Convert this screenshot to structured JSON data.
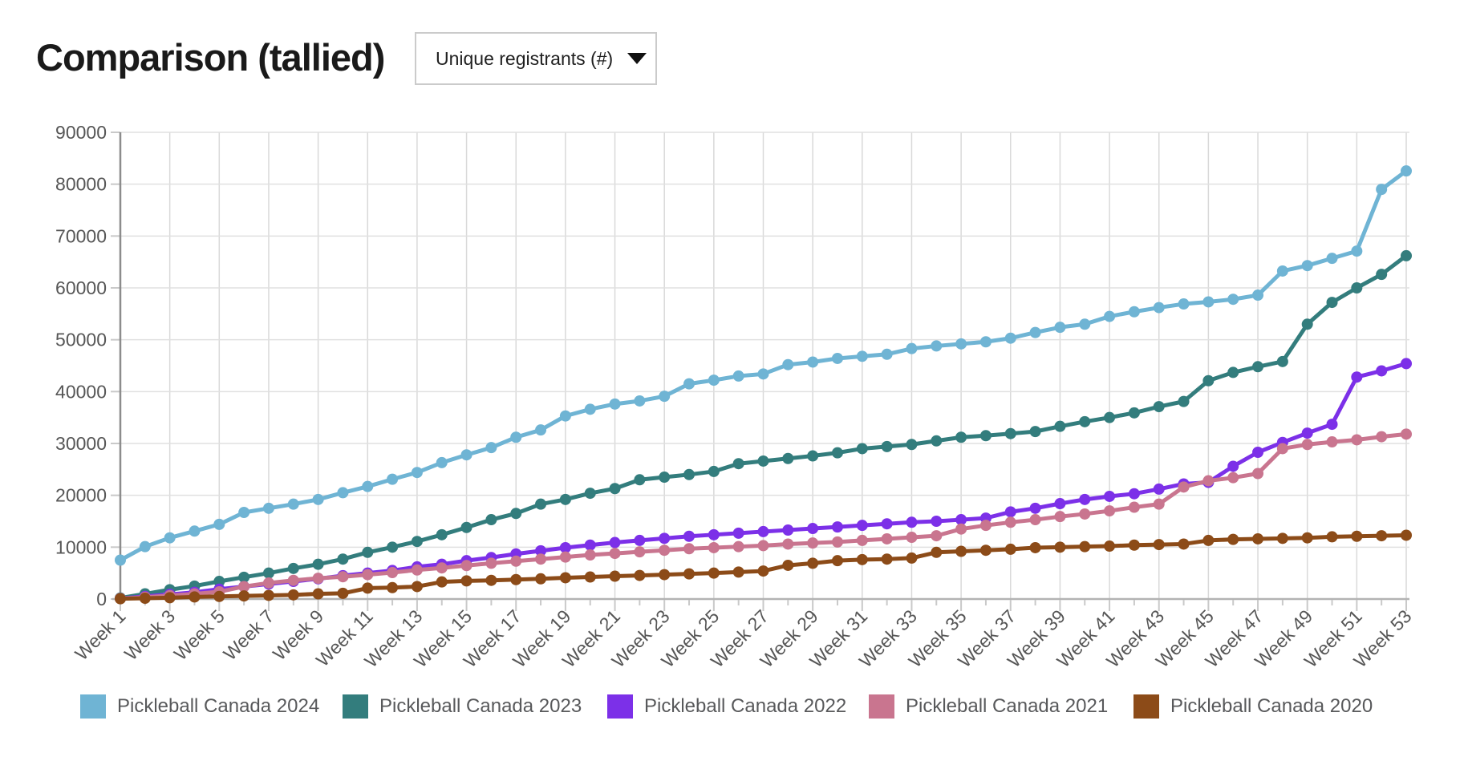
{
  "header": {
    "title": "Comparison (tallied)",
    "metric_dropdown": {
      "value": "Unique registrants (#)",
      "icon": "caret-down"
    }
  },
  "colors": {
    "title_text": "#1a1a1a",
    "axis_label_text": "#565656",
    "legend_text": "#58595b",
    "grid_line": "#e0e0e0",
    "vertical_grid_line": "#d9d9d9",
    "y_axis_line": "#8c8c8c",
    "x_axis_line": "#b3b3b3",
    "tick_mark": "#c9c9c9",
    "dropdown_border": "#cbcbcb"
  },
  "chart_data": {
    "type": "line",
    "title": "",
    "xlabel": "",
    "ylabel": "",
    "x_unit": "week",
    "weeks": 53,
    "ylim": [
      0,
      90000
    ],
    "y_tick_step": 10000,
    "grid": true,
    "legend_position": "bottom",
    "markers": true,
    "y_tick_labels": [
      "0",
      "10000",
      "20000",
      "30000",
      "40000",
      "50000",
      "60000",
      "70000",
      "80000",
      "90000"
    ],
    "x_tick_weeks": [
      1,
      3,
      5,
      7,
      9,
      11,
      13,
      15,
      17,
      19,
      21,
      23,
      25,
      27,
      29,
      31,
      33,
      35,
      37,
      39,
      41,
      43,
      45,
      47,
      49,
      51,
      53
    ],
    "x_tick_labels": [
      "Week 1",
      "Week 3",
      "Week 5",
      "Week 7",
      "Week 9",
      "Week 11",
      "Week 13",
      "Week 15",
      "Week 17",
      "Week 19",
      "Week 21",
      "Week 23",
      "Week 25",
      "Week 27",
      "Week 29",
      "Week 31",
      "Week 33",
      "Week 35",
      "Week 37",
      "Week 39",
      "Week 41",
      "Week 43",
      "Week 45",
      "Week 47",
      "Week 49",
      "Week 51",
      "Week 53"
    ],
    "series": [
      {
        "name": "Pickleball Canada 2024",
        "color": "#6fb4d4",
        "values": [
          7500,
          10100,
          11800,
          13100,
          14400,
          16700,
          17500,
          18300,
          19200,
          20500,
          21700,
          23100,
          24400,
          26300,
          27800,
          29200,
          31200,
          32600,
          35300,
          36600,
          37600,
          38200,
          39100,
          41500,
          42200,
          43000,
          43400,
          45200,
          45700,
          46400,
          46800,
          47200,
          48300,
          48800,
          49200,
          49600,
          50300,
          51400,
          52400,
          53000,
          54500,
          55400,
          56200,
          56900,
          57300,
          57800,
          58600,
          63250,
          64300,
          65700,
          67100,
          79000,
          82550
        ]
      },
      {
        "name": "Pickleball Canada 2023",
        "color": "#337d7d",
        "values": [
          200,
          1000,
          1800,
          2500,
          3400,
          4200,
          5000,
          5900,
          6700,
          7700,
          9000,
          10000,
          11100,
          12400,
          13800,
          15300,
          16500,
          18300,
          19200,
          20400,
          21300,
          23000,
          23500,
          24000,
          24600,
          26100,
          26600,
          27100,
          27600,
          28200,
          29000,
          29400,
          29800,
          30500,
          31200,
          31500,
          31900,
          32300,
          33300,
          34200,
          35000,
          35900,
          37100,
          38100,
          42100,
          43700,
          44800,
          45800,
          53000,
          57200,
          60000,
          62600,
          66200
        ]
      },
      {
        "name": "Pickleball Canada 2022",
        "color": "#7c30e8",
        "values": [
          100,
          500,
          900,
          1300,
          1900,
          2400,
          2900,
          3400,
          3900,
          4500,
          5000,
          5500,
          6200,
          6700,
          7400,
          8000,
          8700,
          9300,
          9900,
          10400,
          10900,
          11300,
          11700,
          12100,
          12400,
          12700,
          13000,
          13300,
          13600,
          13900,
          14200,
          14500,
          14800,
          15000,
          15300,
          15600,
          16800,
          17500,
          18400,
          19200,
          19800,
          20300,
          21200,
          22200,
          22500,
          25600,
          28300,
          30200,
          32000,
          33700,
          42800,
          44000,
          45400
        ]
      },
      {
        "name": "Pickleball Canada 2021",
        "color": "#c9758f",
        "values": [
          100,
          350,
          650,
          1000,
          1400,
          2400,
          3100,
          3600,
          4000,
          4300,
          4700,
          5100,
          5600,
          6000,
          6450,
          6900,
          7300,
          7700,
          8100,
          8500,
          8800,
          9100,
          9400,
          9700,
          9900,
          10100,
          10300,
          10600,
          10800,
          11000,
          11300,
          11600,
          11900,
          12200,
          13500,
          14200,
          14800,
          15300,
          15900,
          16400,
          17000,
          17700,
          18300,
          21600,
          22800,
          23400,
          24200,
          29000,
          29800,
          30300,
          30700,
          31300,
          31800
        ]
      },
      {
        "name": "Pickleball Canada 2020",
        "color": "#8c4b18",
        "values": [
          50,
          150,
          250,
          400,
          500,
          600,
          700,
          800,
          1000,
          1100,
          2100,
          2200,
          2400,
          3300,
          3500,
          3600,
          3750,
          3900,
          4100,
          4250,
          4400,
          4550,
          4700,
          4850,
          5000,
          5200,
          5400,
          6500,
          6900,
          7400,
          7600,
          7700,
          7900,
          9000,
          9200,
          9400,
          9600,
          9900,
          10000,
          10100,
          10200,
          10400,
          10500,
          10600,
          11300,
          11500,
          11600,
          11700,
          11800,
          12000,
          12100,
          12200,
          12300
        ]
      }
    ]
  }
}
